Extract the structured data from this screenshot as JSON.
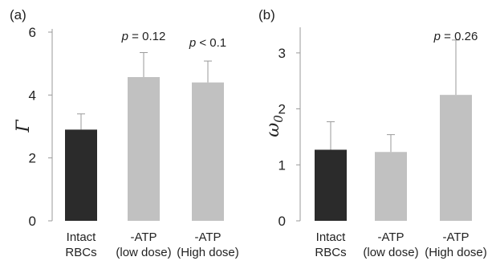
{
  "colors": {
    "intact": "#2b2b2b",
    "atp_depleted": "#c1c1c1",
    "axis": "#999999"
  },
  "chart_data": [
    {
      "type": "bar",
      "panel_label": "(a)",
      "ylabel": "Γ",
      "ylim": [
        0,
        6
      ],
      "yticks": [
        0,
        2,
        4,
        6
      ],
      "categories": [
        {
          "lines": [
            "Intact",
            "RBCs"
          ]
        },
        {
          "lines": [
            "-ATP",
            "(low dose)"
          ]
        },
        {
          "lines": [
            "-ATP",
            "(High dose)"
          ]
        }
      ],
      "values": [
        2.9,
        4.57,
        4.4
      ],
      "errors": [
        0.5,
        0.78,
        0.68
      ],
      "bar_colors": [
        "#2b2b2b",
        "#c1c1c1",
        "#c1c1c1"
      ],
      "annotations": [
        {
          "bar": 1,
          "p": "p",
          "rest": " = 0.12"
        },
        {
          "bar": 2,
          "p": "p",
          "rest": " < 0.1"
        }
      ]
    },
    {
      "type": "bar",
      "panel_label": "(b)",
      "ylabel": "ω",
      "ylabel_sub": "0",
      "ylim": [
        0,
        3.4
      ],
      "yticks": [
        0,
        1,
        2,
        3
      ],
      "categories": [
        {
          "lines": [
            "Intact",
            "RBCs"
          ]
        },
        {
          "lines": [
            "-ATP",
            "(low dose)"
          ]
        },
        {
          "lines": [
            "-ATP",
            "(High dose)"
          ]
        }
      ],
      "values": [
        1.27,
        1.23,
        2.25
      ],
      "errors": [
        0.5,
        0.31,
        0.98
      ],
      "bar_colors": [
        "#2b2b2b",
        "#c1c1c1",
        "#c1c1c1"
      ],
      "annotations": [
        {
          "bar": 2,
          "p": "p",
          "rest": " = 0.26"
        }
      ]
    }
  ]
}
